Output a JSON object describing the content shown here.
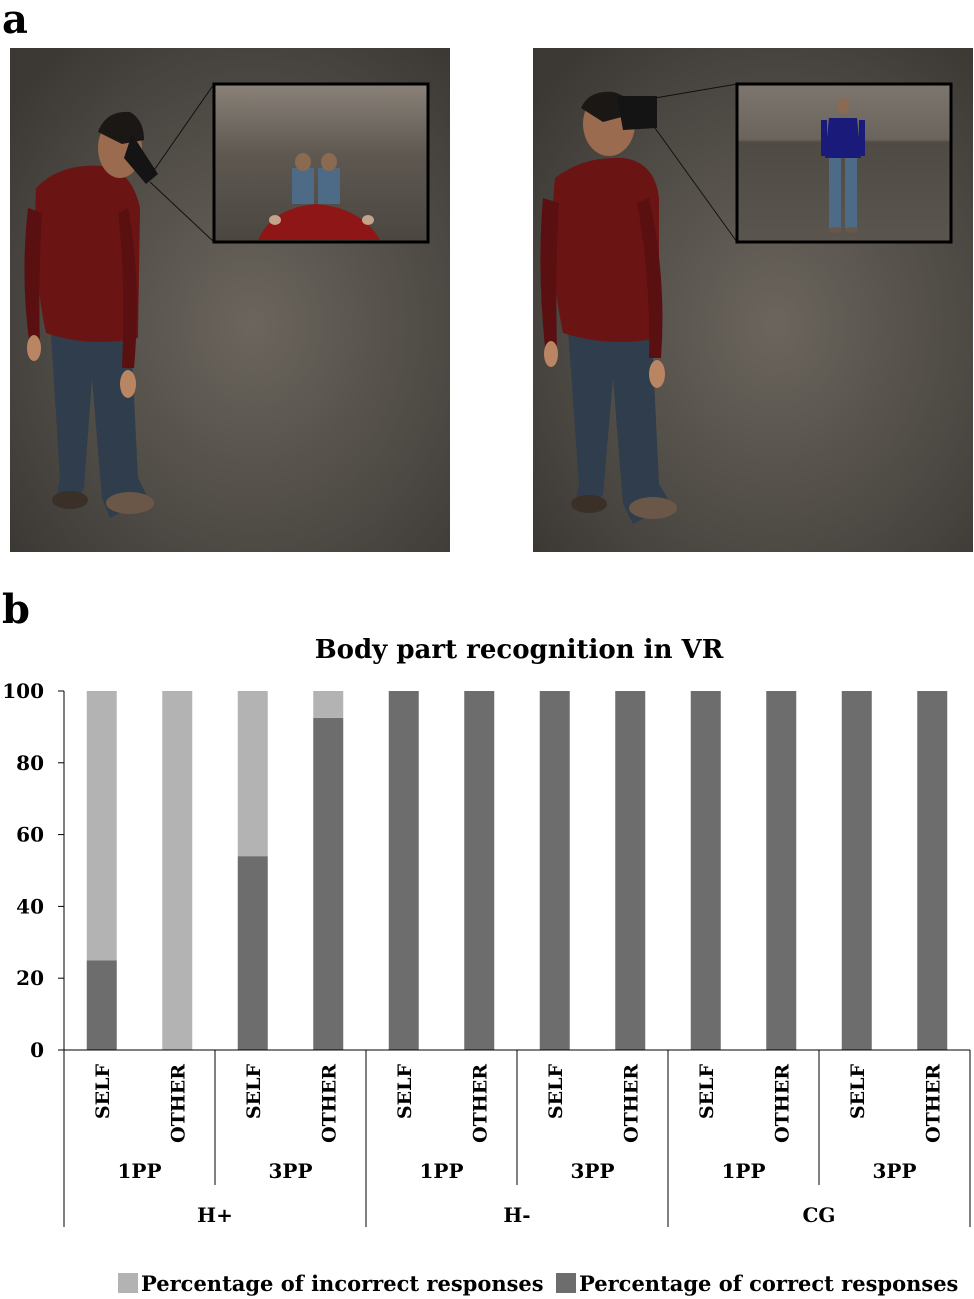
{
  "panel_labels": {
    "a": "a",
    "b": "b"
  },
  "scenes": {
    "left": {
      "description_icon": "avatar-looking-down-first-person-view-icon"
    },
    "right": {
      "description_icon": "avatar-facing-other-third-person-view-icon"
    }
  },
  "colors": {
    "incorrect": "#b3b3b3",
    "correct": "#6d6d6d",
    "scene_bg": "#4b4742"
  },
  "chart_data": {
    "type": "bar",
    "stacked": true,
    "title": "Body part recognition in VR",
    "ylim": [
      0,
      100
    ],
    "yticks": [
      0,
      20,
      40,
      60,
      80,
      100
    ],
    "grid": false,
    "legend_position": "bottom",
    "categories": [
      "SELF",
      "OTHER",
      "SELF",
      "OTHER",
      "SELF",
      "OTHER",
      "SELF",
      "OTHER",
      "SELF",
      "OTHER",
      "SELF",
      "OTHER"
    ],
    "perspective_groups": [
      "1PP",
      "3PP",
      "1PP",
      "3PP",
      "1PP",
      "3PP"
    ],
    "main_groups": [
      "H+",
      "H-",
      "CG"
    ],
    "series": [
      {
        "name": "Percentage of correct responses",
        "values": [
          25,
          0,
          54,
          92.5,
          100,
          100,
          100,
          100,
          100,
          100,
          100,
          100
        ]
      },
      {
        "name": "Percentage of incorrect responses",
        "values": [
          75,
          100,
          46,
          7.5,
          0,
          0,
          0,
          0,
          0,
          0,
          0,
          0
        ]
      }
    ]
  },
  "legend": {
    "incorrect_label": "Percentage of incorrect responses",
    "correct_label": "Percentage of correct responses"
  }
}
